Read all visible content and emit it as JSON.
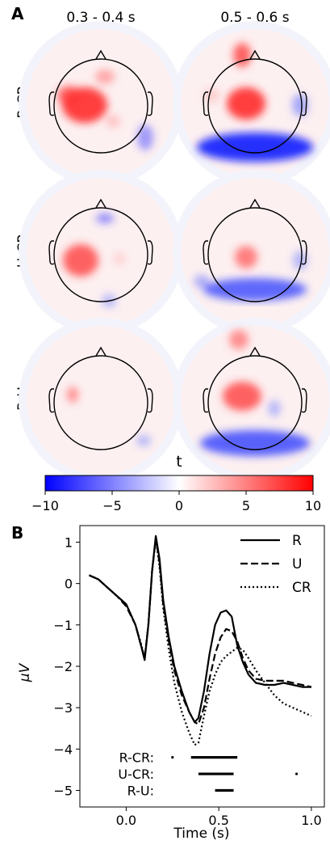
{
  "panel_a": {
    "label": "A",
    "columns": [
      "0.3 - 0.4 s",
      "0.5 - 0.6 s"
    ],
    "rows": [
      "R-CR",
      "U-CR",
      "R-U"
    ],
    "colorbar": {
      "label": "t",
      "ticks": [
        "−10",
        "−5",
        "0",
        "5",
        "10"
      ],
      "range": [
        -10,
        10
      ],
      "colors": {
        "low": "#0000ff",
        "mid": "#ffffff",
        "high": "#ff0000"
      }
    }
  },
  "panel_b": {
    "label": "B",
    "chart_data": {
      "type": "line",
      "xlabel": "Time (s)",
      "ylabel": "µV",
      "xlim": [
        -0.25,
        1.07
      ],
      "ylim": [
        -5.4,
        1.4
      ],
      "xticks": [
        0.0,
        0.5,
        1.0
      ],
      "xtick_labels": [
        "0.0",
        "0.5",
        "1.0"
      ],
      "yticks": [
        1,
        0,
        -1,
        -2,
        -3,
        -4,
        -5
      ],
      "ytick_labels": [
        "1",
        "0",
        "−1",
        "−2",
        "−3",
        "−4",
        "−5"
      ],
      "legend_position": "top-right",
      "series": [
        {
          "name": "R",
          "style": "solid",
          "x": [
            -0.2,
            -0.15,
            -0.1,
            -0.05,
            0.0,
            0.05,
            0.08,
            0.1,
            0.12,
            0.14,
            0.16,
            0.18,
            0.2,
            0.23,
            0.26,
            0.3,
            0.34,
            0.37,
            0.39,
            0.42,
            0.45,
            0.48,
            0.51,
            0.54,
            0.57,
            0.6,
            0.63,
            0.66,
            0.7,
            0.75,
            0.8,
            0.85,
            0.9,
            0.95,
            1.0
          ],
          "y": [
            0.2,
            0.1,
            -0.1,
            -0.3,
            -0.5,
            -1.0,
            -1.5,
            -1.85,
            -1.0,
            0.3,
            1.15,
            0.6,
            -0.4,
            -1.3,
            -2.0,
            -2.6,
            -3.1,
            -3.35,
            -3.25,
            -2.6,
            -1.7,
            -1.0,
            -0.7,
            -0.65,
            -0.8,
            -1.5,
            -1.9,
            -2.2,
            -2.4,
            -2.45,
            -2.45,
            -2.4,
            -2.45,
            -2.5,
            -2.5
          ]
        },
        {
          "name": "U",
          "style": "dashed",
          "x": [
            -0.2,
            -0.15,
            -0.1,
            -0.05,
            0.0,
            0.05,
            0.08,
            0.1,
            0.12,
            0.14,
            0.16,
            0.18,
            0.2,
            0.23,
            0.26,
            0.3,
            0.34,
            0.37,
            0.39,
            0.42,
            0.45,
            0.48,
            0.51,
            0.54,
            0.57,
            0.6,
            0.63,
            0.66,
            0.7,
            0.75,
            0.8,
            0.85,
            0.9,
            0.95,
            1.0
          ],
          "y": [
            0.2,
            0.1,
            -0.1,
            -0.3,
            -0.55,
            -1.0,
            -1.5,
            -1.8,
            -1.0,
            0.3,
            1.1,
            0.5,
            -0.5,
            -1.4,
            -2.1,
            -2.7,
            -3.1,
            -3.35,
            -3.4,
            -3.0,
            -2.3,
            -1.7,
            -1.3,
            -1.1,
            -1.15,
            -1.4,
            -1.8,
            -2.1,
            -2.3,
            -2.35,
            -2.35,
            -2.35,
            -2.4,
            -2.45,
            -2.5
          ]
        },
        {
          "name": "CR",
          "style": "dotted",
          "x": [
            -0.2,
            -0.15,
            -0.1,
            -0.05,
            0.0,
            0.05,
            0.08,
            0.1,
            0.12,
            0.14,
            0.16,
            0.18,
            0.2,
            0.23,
            0.26,
            0.3,
            0.34,
            0.37,
            0.39,
            0.42,
            0.45,
            0.48,
            0.51,
            0.54,
            0.57,
            0.6,
            0.63,
            0.66,
            0.7,
            0.75,
            0.8,
            0.85,
            0.9,
            0.95,
            1.0
          ],
          "y": [
            0.2,
            0.1,
            -0.1,
            -0.3,
            -0.5,
            -1.0,
            -1.45,
            -1.8,
            -1.0,
            0.3,
            1.1,
            0.4,
            -0.6,
            -1.6,
            -2.4,
            -3.1,
            -3.6,
            -3.9,
            -3.85,
            -3.2,
            -2.6,
            -2.2,
            -1.9,
            -1.75,
            -1.65,
            -1.55,
            -1.6,
            -1.8,
            -2.1,
            -2.4,
            -2.7,
            -2.9,
            -3.0,
            -3.1,
            -3.2
          ]
        }
      ],
      "significance": [
        {
          "label": "R-CR:",
          "level": -4.2,
          "segments": [
            [
              0.35,
              0.6
            ]
          ],
          "dots": [
            0.25
          ]
        },
        {
          "label": "U-CR:",
          "level": -4.6,
          "segments": [
            [
              0.39,
              0.58
            ]
          ],
          "dots": [
            0.92
          ]
        },
        {
          "label": "R-U:",
          "level": -5.0,
          "segments": [
            [
              0.48,
              0.58
            ]
          ],
          "dots": []
        }
      ]
    }
  }
}
